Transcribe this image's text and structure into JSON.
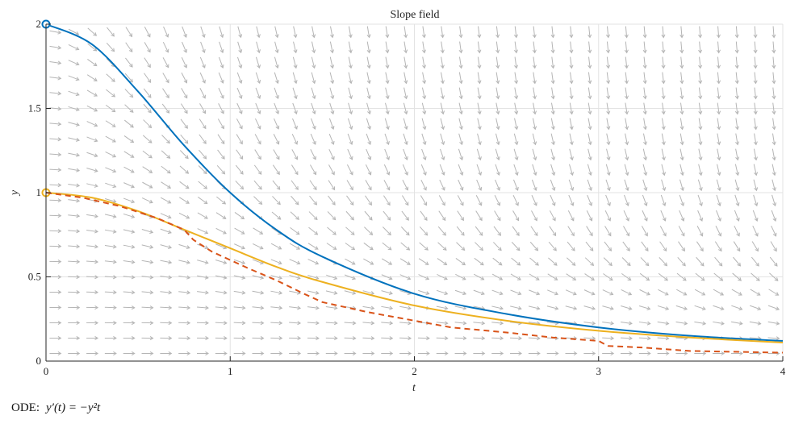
{
  "chart_data": {
    "type": "line",
    "title": "Slope field",
    "xlabel": "t",
    "ylabel": "y",
    "xlim": [
      0,
      4
    ],
    "ylim": [
      0,
      2
    ],
    "xticks": [
      0,
      1,
      2,
      3,
      4
    ],
    "xtick_labels": [
      "0",
      "1",
      "2",
      "3",
      "4"
    ],
    "yticks": [
      0,
      0.5,
      1,
      1.5,
      2
    ],
    "ytick_labels": [
      "0",
      "0.5",
      "1",
      "1.5",
      "2"
    ],
    "grid": true,
    "slope_field": {
      "equation": "-y^2*t",
      "t_samples": 40,
      "y_samples": 22,
      "color": "#b5b5b5"
    },
    "series": [
      {
        "kind": "solid",
        "color": "#0072BD",
        "initial_condition": [
          0,
          2
        ],
        "x": [
          0,
          0.25,
          0.5,
          0.75,
          1,
          1.25,
          1.5,
          2,
          2.5,
          3,
          3.5,
          4
        ],
        "y": [
          2,
          1.88,
          1.6,
          1.28,
          1,
          0.78,
          0.62,
          0.4,
          0.28,
          0.2,
          0.15,
          0.12
        ]
      },
      {
        "kind": "solid",
        "color": "#EDB120",
        "initial_condition": [
          0,
          1
        ],
        "x": [
          0,
          0.25,
          0.5,
          0.75,
          1,
          1.25,
          1.5,
          2,
          2.5,
          3,
          3.5,
          4
        ],
        "y": [
          1,
          0.97,
          0.89,
          0.78,
          0.67,
          0.56,
          0.47,
          0.33,
          0.24,
          0.18,
          0.14,
          0.11
        ]
      },
      {
        "kind": "dashed",
        "color": "#D95319",
        "x": [
          0,
          0.2,
          0.4,
          0.6,
          0.75,
          0.8,
          0.9,
          1,
          1.1,
          1.25,
          1.4,
          1.5,
          1.75,
          2,
          2.2,
          2.5,
          2.75,
          3,
          3.05,
          3.25,
          3.5,
          4
        ],
        "y": [
          1,
          0.97,
          0.92,
          0.85,
          0.78,
          0.72,
          0.65,
          0.6,
          0.55,
          0.48,
          0.4,
          0.35,
          0.29,
          0.24,
          0.2,
          0.17,
          0.14,
          0.12,
          0.09,
          0.08,
          0.06,
          0.05
        ]
      }
    ]
  },
  "caption": {
    "label": "ODE:",
    "equation": "y′(t) = −y²t"
  }
}
